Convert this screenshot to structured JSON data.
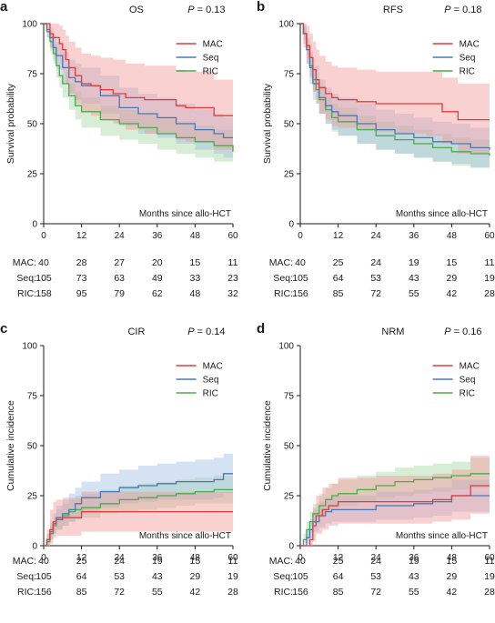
{
  "legend_labels": [
    "MAC",
    "Seq",
    "RIC"
  ],
  "colors": {
    "MAC": "#e63a3a",
    "Seq": "#4a78b5",
    "RIC": "#4bab4b"
  },
  "band_colors": {
    "MAC": "#f39a9a",
    "Seq": "#9fbee2",
    "RIC": "#a7d8a4"
  },
  "x_annotation": "Months since allo-HCT",
  "chart_data": [
    {
      "type": "line",
      "step": true,
      "letter": "a",
      "title": "OS",
      "p_value": "0.13",
      "ylabel": "Survival probability",
      "xticks": [
        "0",
        "12",
        "24",
        "36",
        "48",
        "60"
      ],
      "yticks": [
        "0",
        "25",
        "50",
        "75",
        "100"
      ],
      "xlim": [
        0,
        60
      ],
      "ylim": [
        0,
        100
      ],
      "legend": "top-right",
      "series": [
        {
          "name": "MAC",
          "x": [
            0,
            2,
            3,
            5,
            6,
            7,
            8,
            10,
            12,
            15,
            18,
            22,
            26,
            32,
            42,
            45,
            54,
            60
          ],
          "y": [
            100,
            95,
            93,
            90,
            87,
            82,
            78,
            74,
            70,
            69,
            67,
            65,
            63,
            62,
            59,
            58,
            54,
            54
          ],
          "lower": [
            100,
            88,
            85,
            80,
            76,
            70,
            65,
            60,
            56,
            54,
            52,
            50,
            47,
            45,
            42,
            41,
            37,
            37
          ],
          "upper": [
            100,
            100,
            100,
            99,
            97,
            94,
            91,
            88,
            85,
            84,
            83,
            82,
            80,
            79,
            77,
            76,
            72,
            72
          ]
        },
        {
          "name": "Seq",
          "x": [
            0,
            1,
            2,
            3,
            4,
            6,
            8,
            10,
            12,
            18,
            24,
            30,
            36,
            42,
            48,
            54,
            57,
            60
          ],
          "y": [
            100,
            97,
            93,
            88,
            84,
            78,
            73,
            71,
            69,
            64,
            58,
            55,
            53,
            50,
            47,
            45,
            43,
            43
          ],
          "lower": [
            100,
            93,
            88,
            82,
            77,
            70,
            65,
            62,
            60,
            55,
            49,
            45,
            43,
            40,
            37,
            35,
            33,
            33
          ],
          "upper": [
            100,
            100,
            98,
            94,
            91,
            86,
            82,
            80,
            78,
            74,
            68,
            65,
            63,
            60,
            57,
            55,
            53,
            53
          ]
        },
        {
          "name": "RIC",
          "x": [
            0,
            1,
            2,
            3,
            4,
            5,
            6,
            8,
            10,
            12,
            18,
            24,
            30,
            36,
            42,
            48,
            54,
            60
          ],
          "y": [
            100,
            96,
            91,
            85,
            79,
            74,
            70,
            64,
            59,
            56,
            52,
            50,
            48,
            45,
            43,
            41,
            39,
            36
          ],
          "lower": [
            100,
            93,
            86,
            80,
            73,
            68,
            63,
            57,
            52,
            48,
            44,
            42,
            40,
            37,
            35,
            33,
            31,
            28
          ],
          "upper": [
            100,
            99,
            95,
            90,
            85,
            80,
            76,
            70,
            66,
            63,
            59,
            57,
            55,
            53,
            51,
            49,
            47,
            45
          ]
        }
      ],
      "risk_table": [
        {
          "label": "MAC:",
          "counts": [
            "40",
            "28",
            "27",
            "20",
            "15",
            "11"
          ]
        },
        {
          "label": "Seq:",
          "counts": [
            "105",
            "73",
            "63",
            "49",
            "33",
            "23"
          ]
        },
        {
          "label": "RIC:",
          "counts": [
            "158",
            "95",
            "79",
            "62",
            "48",
            "32"
          ]
        }
      ]
    },
    {
      "type": "line",
      "step": true,
      "letter": "b",
      "title": "RFS",
      "p_value": "0.18",
      "ylabel": "Survival probability",
      "xticks": [
        "0",
        "12",
        "24",
        "36",
        "48",
        "60"
      ],
      "yticks": [
        "0",
        "25",
        "50",
        "75",
        "100"
      ],
      "xlim": [
        0,
        60
      ],
      "ylim": [
        0,
        100
      ],
      "legend": "top-right",
      "series": [
        {
          "name": "MAC",
          "x": [
            0,
            1,
            2,
            3,
            4,
            5,
            6,
            8,
            10,
            12,
            18,
            24,
            30,
            40,
            45,
            50,
            60
          ],
          "y": [
            100,
            95,
            89,
            83,
            77,
            72,
            68,
            65,
            63,
            62,
            61,
            60,
            60,
            60,
            56,
            52,
            52
          ],
          "lower": [
            100,
            88,
            80,
            73,
            66,
            60,
            55,
            52,
            49,
            48,
            47,
            46,
            45,
            44,
            40,
            35,
            35
          ],
          "upper": [
            100,
            100,
            99,
            95,
            91,
            87,
            84,
            81,
            79,
            78,
            77,
            76,
            76,
            76,
            73,
            70,
            70
          ]
        },
        {
          "name": "Seq",
          "x": [
            0,
            1,
            2,
            3,
            4,
            6,
            8,
            10,
            12,
            18,
            24,
            30,
            36,
            42,
            48,
            54,
            60
          ],
          "y": [
            100,
            95,
            87,
            78,
            70,
            63,
            59,
            56,
            54,
            50,
            47,
            45,
            43,
            41,
            40,
            38,
            37
          ],
          "lower": [
            100,
            90,
            80,
            70,
            62,
            55,
            50,
            47,
            44,
            40,
            37,
            35,
            33,
            31,
            30,
            28,
            27
          ],
          "upper": [
            100,
            99,
            93,
            86,
            79,
            72,
            68,
            65,
            63,
            60,
            57,
            55,
            53,
            51,
            50,
            48,
            47
          ]
        },
        {
          "name": "RIC",
          "x": [
            0,
            1,
            2,
            3,
            4,
            5,
            6,
            8,
            10,
            12,
            18,
            24,
            30,
            36,
            42,
            48,
            54,
            60
          ],
          "y": [
            100,
            95,
            87,
            79,
            72,
            67,
            62,
            57,
            53,
            51,
            47,
            44,
            42,
            40,
            38,
            36,
            35,
            34
          ],
          "lower": [
            100,
            92,
            83,
            74,
            66,
            60,
            55,
            50,
            46,
            44,
            40,
            37,
            35,
            33,
            31,
            29,
            28,
            27
          ],
          "upper": [
            100,
            98,
            92,
            85,
            78,
            73,
            69,
            64,
            60,
            58,
            54,
            51,
            49,
            47,
            45,
            43,
            42,
            41
          ]
        }
      ],
      "risk_table": [
        {
          "label": "MAC:",
          "counts": [
            "40",
            "25",
            "24",
            "19",
            "15",
            "11"
          ]
        },
        {
          "label": "Seq:",
          "counts": [
            "105",
            "64",
            "53",
            "43",
            "29",
            "19"
          ]
        },
        {
          "label": "RIC:",
          "counts": [
            "156",
            "85",
            "72",
            "55",
            "42",
            "28"
          ]
        }
      ]
    },
    {
      "type": "line",
      "step": true,
      "letter": "c",
      "title": "CIR",
      "p_value": "0.14",
      "ylabel": "Cumulative incidence",
      "xticks": [
        "0",
        "12",
        "24",
        "36",
        "48",
        "60"
      ],
      "yticks": [
        "0",
        "25",
        "50",
        "75",
        "100"
      ],
      "xlim": [
        0,
        60
      ],
      "ylim": [
        0,
        100
      ],
      "legend": "top-right",
      "series": [
        {
          "name": "MAC",
          "x": [
            0,
            1,
            2,
            3,
            4,
            6,
            9,
            12,
            24,
            60
          ],
          "y": [
            0,
            3,
            8,
            12,
            13,
            14,
            14,
            17,
            17,
            17
          ],
          "lower": [
            0,
            0,
            1,
            4,
            5,
            5,
            5,
            7,
            7,
            7
          ],
          "upper": [
            0,
            8,
            18,
            22,
            23,
            24,
            24,
            27,
            27,
            27
          ]
        },
        {
          "name": "Seq",
          "x": [
            0,
            1,
            2,
            3,
            4,
            6,
            8,
            10,
            12,
            18,
            24,
            30,
            36,
            42,
            48,
            54,
            57,
            60
          ],
          "y": [
            0,
            3,
            7,
            11,
            14,
            16,
            18,
            21,
            24,
            27,
            29,
            30,
            31,
            32,
            32,
            33,
            36,
            36
          ],
          "lower": [
            0,
            1,
            3,
            6,
            8,
            10,
            12,
            14,
            16,
            19,
            21,
            22,
            23,
            23,
            23,
            24,
            26,
            26
          ],
          "upper": [
            0,
            6,
            12,
            16,
            20,
            23,
            26,
            29,
            32,
            36,
            38,
            40,
            41,
            42,
            43,
            44,
            46,
            46
          ]
        },
        {
          "name": "RIC",
          "x": [
            0,
            1,
            2,
            3,
            4,
            6,
            8,
            10,
            12,
            18,
            24,
            30,
            36,
            42,
            48,
            54,
            60
          ],
          "y": [
            0,
            2,
            6,
            10,
            13,
            15,
            17,
            18,
            19,
            21,
            23,
            24,
            25,
            26,
            27,
            28,
            28
          ],
          "lower": [
            0,
            0,
            3,
            6,
            8,
            10,
            12,
            13,
            14,
            16,
            17,
            18,
            19,
            20,
            21,
            21,
            21
          ],
          "upper": [
            0,
            5,
            10,
            14,
            18,
            21,
            23,
            25,
            26,
            28,
            30,
            31,
            32,
            33,
            34,
            35,
            35
          ]
        }
      ],
      "risk_table": [
        {
          "label": "MAC:",
          "counts": [
            "40",
            "25",
            "24",
            "19",
            "15",
            "11"
          ]
        },
        {
          "label": "Seq:",
          "counts": [
            "105",
            "64",
            "53",
            "43",
            "29",
            "19"
          ]
        },
        {
          "label": "RIC:",
          "counts": [
            "156",
            "85",
            "72",
            "55",
            "42",
            "28"
          ]
        }
      ]
    },
    {
      "type": "line",
      "step": true,
      "letter": "d",
      "title": "NRM",
      "p_value": "0.16",
      "ylabel": "Cumulative incidence",
      "xticks": [
        "0",
        "12",
        "24",
        "36",
        "48",
        "60"
      ],
      "yticks": [
        "0",
        "25",
        "50",
        "75",
        "100"
      ],
      "xlim": [
        0,
        60
      ],
      "ylim": [
        0,
        100
      ],
      "legend": "top-right",
      "series": [
        {
          "name": "MAC",
          "x": [
            0,
            3,
            4,
            5,
            7,
            9,
            12,
            24,
            36,
            42,
            48,
            54,
            60
          ],
          "y": [
            0,
            3,
            10,
            15,
            18,
            20,
            22,
            22,
            22,
            23,
            25,
            30,
            30
          ],
          "lower": [
            0,
            0,
            2,
            6,
            8,
            10,
            11,
            11,
            11,
            12,
            13,
            16,
            16
          ],
          "upper": [
            0,
            8,
            19,
            25,
            29,
            31,
            34,
            35,
            35,
            36,
            38,
            45,
            45
          ]
        },
        {
          "name": "Seq",
          "x": [
            0,
            2,
            3,
            4,
            6,
            8,
            10,
            12,
            24,
            36,
            42,
            48,
            60
          ],
          "y": [
            0,
            4,
            8,
            12,
            15,
            17,
            18,
            18,
            20,
            21,
            22,
            25,
            25
          ],
          "lower": [
            0,
            1,
            4,
            7,
            9,
            11,
            12,
            12,
            13,
            14,
            15,
            17,
            17
          ],
          "upper": [
            0,
            8,
            13,
            18,
            22,
            24,
            25,
            25,
            27,
            28,
            29,
            33,
            33
          ]
        },
        {
          "name": "RIC",
          "x": [
            0,
            1,
            2,
            3,
            4,
            6,
            8,
            10,
            12,
            18,
            24,
            30,
            36,
            42,
            48,
            54,
            60
          ],
          "y": [
            0,
            3,
            8,
            12,
            16,
            20,
            23,
            25,
            26,
            28,
            30,
            32,
            33,
            34,
            35,
            36,
            36
          ],
          "lower": [
            0,
            1,
            4,
            8,
            11,
            14,
            17,
            19,
            20,
            22,
            24,
            25,
            26,
            27,
            28,
            29,
            29
          ],
          "upper": [
            0,
            6,
            12,
            17,
            21,
            26,
            29,
            31,
            33,
            35,
            37,
            39,
            40,
            41,
            42,
            44,
            44
          ]
        }
      ],
      "risk_table": [
        {
          "label": "MAC:",
          "counts": [
            "40",
            "25",
            "24",
            "19",
            "15",
            "11"
          ]
        },
        {
          "label": "Seq:",
          "counts": [
            "105",
            "64",
            "53",
            "43",
            "29",
            "19"
          ]
        },
        {
          "label": "RIC:",
          "counts": [
            "156",
            "85",
            "72",
            "55",
            "42",
            "28"
          ]
        }
      ]
    }
  ]
}
